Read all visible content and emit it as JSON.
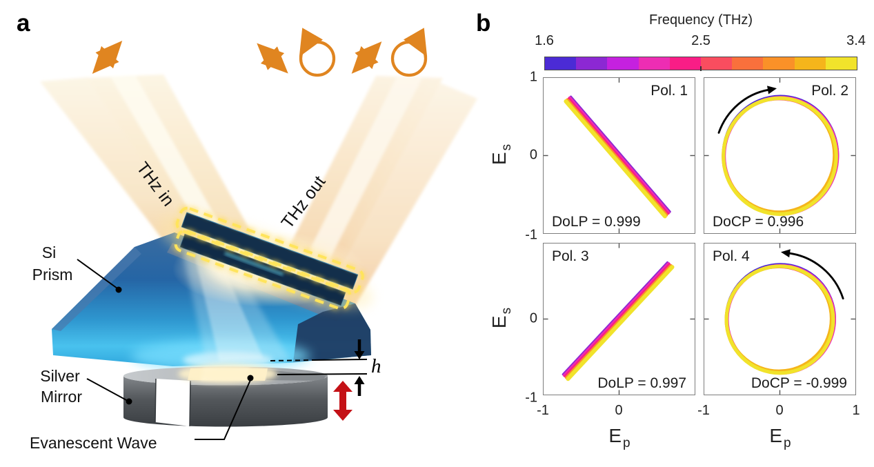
{
  "figure": {
    "panel_a": {
      "tag": "a",
      "labels": {
        "thz_in": "THz in",
        "thz_out": "THz out",
        "si": "Si",
        "prism": "Prism",
        "silver": "Silver",
        "mirror": "Mirror",
        "evanescent": "Evanescent Wave",
        "gap": "h"
      },
      "colors": {
        "accent_orange": "#E08520",
        "prism_blue": "#2368A8",
        "prism_glow_cyan": "#7CE0FF",
        "mirror_gray": "#55595D",
        "metasurface_outline_yellow": "#FFE45C",
        "red_arrow": "#C41116",
        "beam_cream": "#F6DDB6"
      },
      "polarization_symbols": [
        "linear-diagonal",
        "linear-antidiagonal",
        "circular-counterclockwise",
        "linear-diagonal",
        "circular-clockwise"
      ]
    },
    "panel_b": {
      "tag": "b"
    }
  },
  "chart_data": {
    "type": "line",
    "layout": "2x2 polarization state grid, shared axes, discrete frequency colorbar",
    "axes": {
      "x_base": "E",
      "x_sub": "p",
      "y_base": "E",
      "y_sub": "s",
      "xlim": [
        -1,
        1
      ],
      "ylim": [
        -1,
        1
      ]
    },
    "colorbar": {
      "title": "Frequency (THz)",
      "tick_labels": [
        "1.6",
        "2.5",
        "3.4"
      ],
      "min": 1.6,
      "mid": 2.5,
      "max": 3.4,
      "colors": [
        "#4B2BD5",
        "#8C28D3",
        "#C521DF",
        "#ED2DB3",
        "#F91D86",
        "#F94D5F",
        "#F9703C",
        "#FA9128",
        "#F5B51B",
        "#F1E32B"
      ]
    },
    "y_ticks_top_row": [
      "1",
      "0",
      "-1"
    ],
    "y_ticks_bottom_row": [
      "0",
      "-1"
    ],
    "x_ticks_left_col": [
      "-1",
      "0"
    ],
    "x_ticks_right_col": [
      "-1",
      "0",
      "1"
    ],
    "subplots": [
      {
        "name": "Pol. 1",
        "kind": "linear",
        "x": [
          -0.68,
          0.63
        ],
        "y": [
          0.72,
          -0.76
        ],
        "stat": "DoLP = 0.999",
        "name_pos": "top-right",
        "stat_pos": "bottom-left",
        "rotation_arrow": null
      },
      {
        "name": "Pol. 2",
        "kind": "circular",
        "radius": 0.75,
        "stat": "DoCP = 0.996",
        "name_pos": "top-right",
        "stat_pos": "bottom-left",
        "rotation_arrow": "clockwise"
      },
      {
        "name": "Pol. 3",
        "kind": "linear",
        "x": [
          -0.7,
          0.68
        ],
        "y": [
          -0.77,
          0.71
        ],
        "stat": "DoLP = 0.997",
        "name_pos": "top-left",
        "stat_pos": "bottom-right",
        "rotation_arrow": null
      },
      {
        "name": "Pol. 4",
        "kind": "circular",
        "radius": 0.71,
        "stat": "DoCP = -0.999",
        "name_pos": "top-left",
        "stat_pos": "bottom-right",
        "rotation_arrow": "counterclockwise"
      }
    ]
  }
}
